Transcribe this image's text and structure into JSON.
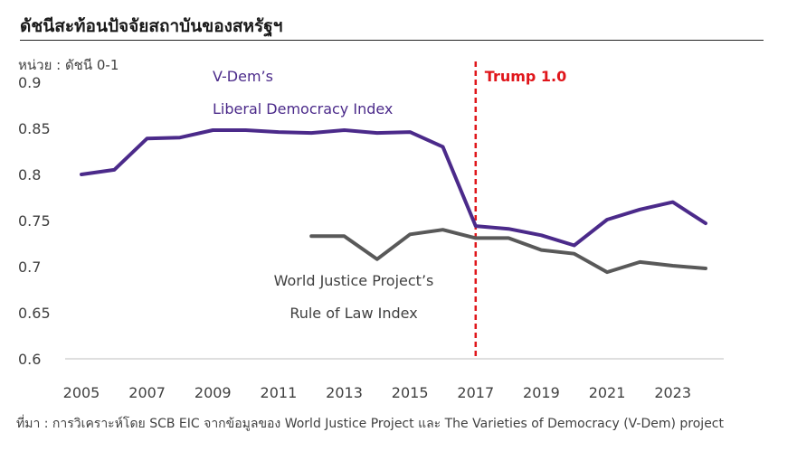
{
  "header": {
    "title": "ดัชนีสะท้อนปัจจัยสถาบันของสหรัฐฯ",
    "unit": "หน่วย : ดัชนี 0-1"
  },
  "footer": {
    "source": "ที่มา : การวิเคราะห์โดย SCB EIC จากข้อมูลของ World Justice Project และ The Varieties of Democracy (V-Dem) project"
  },
  "chart_data": {
    "type": "line",
    "x_ticks": [
      "2005",
      "2007",
      "2009",
      "2011",
      "2013",
      "2015",
      "2017",
      "2019",
      "2021",
      "2023"
    ],
    "y_ticks": [
      "0.9",
      "0.85",
      "0.8",
      "0.75",
      "0.7",
      "0.65",
      "0.6"
    ],
    "ylim": [
      0.6,
      0.9
    ],
    "xlim": [
      2005,
      2024
    ],
    "grid": false,
    "series": [
      {
        "name": "V-Dem’s Liberal Democracy Index",
        "color": "#4b2a8a",
        "x": [
          2005,
          2006,
          2007,
          2008,
          2009,
          2010,
          2011,
          2012,
          2013,
          2014,
          2015,
          2016,
          2017,
          2018,
          2019,
          2020,
          2021,
          2022,
          2023,
          2024
        ],
        "values": [
          0.8,
          0.805,
          0.839,
          0.84,
          0.848,
          0.848,
          0.846,
          0.845,
          0.848,
          0.845,
          0.846,
          0.83,
          0.744,
          0.741,
          0.734,
          0.723,
          0.751,
          0.762,
          0.77,
          0.747
        ]
      },
      {
        "name": "World Justice Project’s Rule of Law Index",
        "color": "#595959",
        "x": [
          2012,
          2013,
          2014,
          2015,
          2016,
          2017,
          2018,
          2019,
          2020,
          2021,
          2022,
          2023,
          2024
        ],
        "values": [
          0.733,
          0.733,
          0.708,
          0.735,
          0.74,
          0.731,
          0.731,
          0.718,
          0.714,
          0.694,
          0.705,
          0.701,
          0.698
        ]
      }
    ],
    "annotations": {
      "vdem_line1": "V-Dem’s",
      "vdem_line2": "Liberal Democracy Index",
      "wjp_line1": "World Justice Project’s",
      "wjp_line2": "Rule of Law Index",
      "trump_label": "Trump 1.0",
      "trump_year": 2017,
      "trump_color": "#e0161b"
    }
  }
}
